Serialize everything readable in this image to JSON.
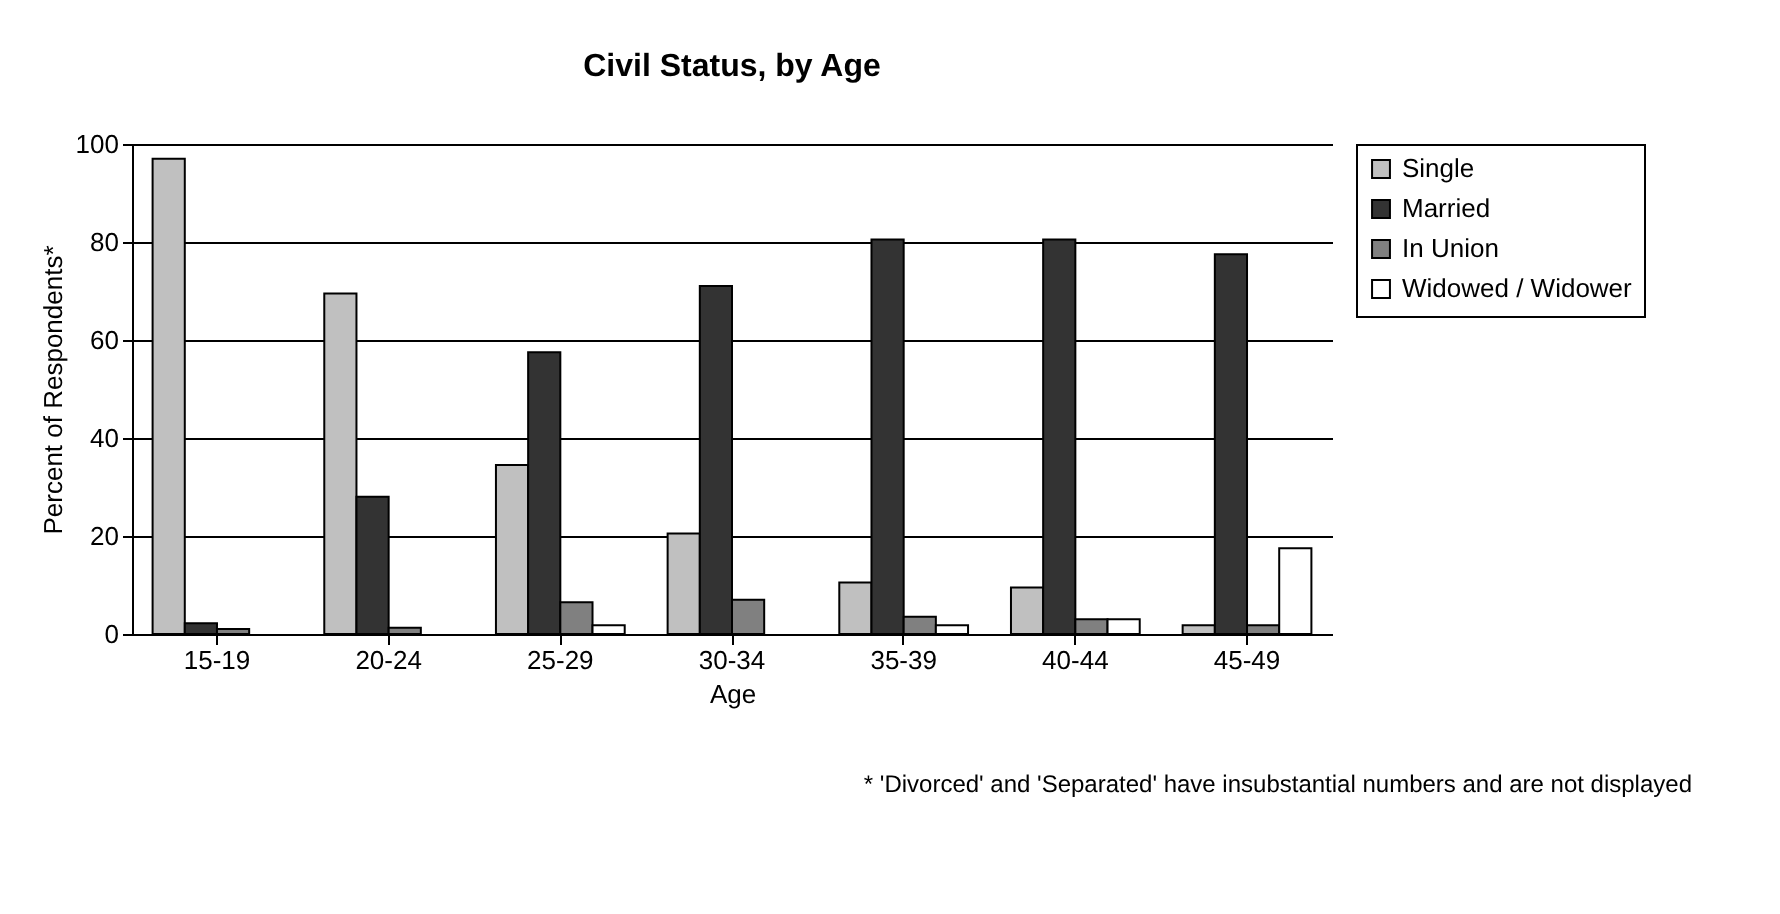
{
  "chart_data": {
    "type": "bar",
    "title": "Civil Status, by Age",
    "xlabel": "Age",
    "ylabel": "Percent of Respondents*",
    "categories": [
      "15-19",
      "20-24",
      "25-29",
      "30-34",
      "35-39",
      "40-44",
      "45-49"
    ],
    "series": [
      {
        "name": "Single",
        "color": "#c0c0c0",
        "values": [
          97,
          69.5,
          34.5,
          20.5,
          10.5,
          9.5,
          1.8
        ]
      },
      {
        "name": "Married",
        "color": "#333333",
        "values": [
          2.2,
          28,
          57.5,
          71,
          80.5,
          80.5,
          77.5
        ]
      },
      {
        "name": "In Union",
        "color": "#808080",
        "values": [
          1,
          1.3,
          6.5,
          7,
          3.5,
          3,
          1.8
        ]
      },
      {
        "name": "Widowed / Widower",
        "color": "#ffffff",
        "values": [
          null,
          null,
          1.8,
          null,
          1.8,
          3,
          17.5
        ]
      }
    ],
    "ylim": [
      0,
      100
    ],
    "yticks": [
      0,
      20,
      40,
      60,
      80,
      100
    ],
    "grid": "y",
    "legend": "right",
    "annotations": [
      "* 'Divorced' and 'Separated' have insubstantial numbers and are not displayed"
    ]
  }
}
